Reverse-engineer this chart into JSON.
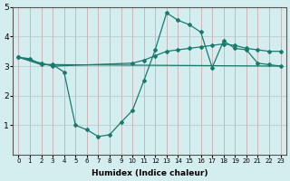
{
  "line1_x": [
    0,
    1,
    2,
    3,
    4,
    5,
    6,
    7,
    8,
    9,
    10,
    11,
    12,
    13,
    14,
    15,
    16,
    17,
    18,
    19,
    20,
    21,
    22,
    23
  ],
  "line1_y": [
    3.3,
    3.25,
    3.05,
    3.05,
    2.8,
    1.0,
    0.85,
    0.62,
    0.68,
    1.1,
    1.5,
    2.5,
    3.55,
    4.8,
    4.55,
    4.4,
    4.15,
    2.95,
    3.85,
    3.6,
    3.55,
    3.1,
    3.05,
    3.0
  ],
  "line2_x": [
    0,
    2,
    3,
    23
  ],
  "line2_y": [
    3.3,
    3.05,
    3.05,
    3.0
  ],
  "line3_x": [
    0,
    2,
    3,
    10,
    11,
    12,
    13,
    14,
    15,
    16,
    17,
    18,
    19,
    20,
    21,
    22,
    23
  ],
  "line3_y": [
    3.3,
    3.1,
    3.0,
    3.1,
    3.2,
    3.35,
    3.5,
    3.55,
    3.6,
    3.65,
    3.7,
    3.75,
    3.7,
    3.6,
    3.55,
    3.5,
    3.5
  ],
  "line_color": "#1a7a6e",
  "bg_color": "#d4eef0",
  "grid_color_v": "#c8a0a0",
  "grid_color_h": "#b8c8c8",
  "xlabel": "Humidex (Indice chaleur)",
  "xlim": [
    -0.5,
    23.5
  ],
  "ylim": [
    0,
    5
  ],
  "yticks": [
    1,
    2,
    3,
    4,
    5
  ],
  "xticks": [
    0,
    1,
    2,
    3,
    4,
    5,
    6,
    7,
    8,
    9,
    10,
    11,
    12,
    13,
    14,
    15,
    16,
    17,
    18,
    19,
    20,
    21,
    22,
    23
  ],
  "marker": "D",
  "markersize": 2.0,
  "linewidth": 0.9
}
